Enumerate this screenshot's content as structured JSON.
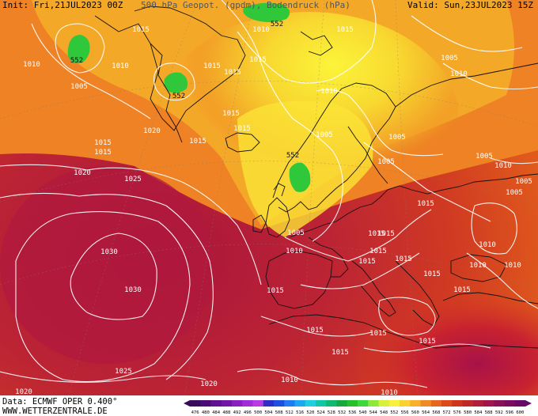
{
  "header": {
    "init": "Init: Fri,21JUL2023 00Z",
    "title": "500 hPa Geopot. (gpdm), Bodendruck (hPa)",
    "valid": "Valid: Sun,23JUL2023 15Z"
  },
  "footer": {
    "source": "Data: ECMWF OPER 0.400°",
    "website": "WWW.WETTERZENTRALE.DE"
  },
  "colorbar": {
    "levels": [
      "476",
      "480",
      "484",
      "488",
      "492",
      "496",
      "500",
      "504",
      "508",
      "512",
      "516",
      "520",
      "524",
      "528",
      "532",
      "536",
      "540",
      "544",
      "548",
      "552",
      "556",
      "560",
      "564",
      "568",
      "572",
      "576",
      "580",
      "584",
      "588",
      "592",
      "596",
      "600"
    ],
    "colors": [
      "#3a0a5a",
      "#4b0d75",
      "#5e1190",
      "#7016a8",
      "#8a1fc2",
      "#a22cd6",
      "#b83de0",
      "#2f2fc8",
      "#1f4fe0",
      "#1f7df0",
      "#1fa8f0",
      "#1fcfe0",
      "#10c8a8",
      "#10b870",
      "#18a840",
      "#28c028",
      "#3ed83a",
      "#8ee83a",
      "#d8f03a",
      "#f8f03a",
      "#fcd030",
      "#f8b02a",
      "#f08a22",
      "#e8661c",
      "#dc4a1c",
      "#d03420",
      "#c02828",
      "#b01e3c",
      "#a0164c",
      "#8c1058",
      "#7a0c60",
      "#660a68"
    ]
  },
  "isobars": [
    {
      "value": "1010",
      "at": "north-atlantic"
    },
    {
      "value": "1010",
      "at": "greenland-sea"
    },
    {
      "value": "1005",
      "at": "greenland"
    },
    {
      "value": "1015",
      "at": "svalbard"
    },
    {
      "value": "1015",
      "at": "barents-sea"
    },
    {
      "value": "1010",
      "at": "barents-sea"
    },
    {
      "value": "1005",
      "at": "russia-north"
    },
    {
      "value": "1010",
      "at": "russia-north"
    },
    {
      "value": "1020",
      "at": "iceland"
    },
    {
      "value": "1015",
      "at": "iceland"
    },
    {
      "value": "1015",
      "at": "norwegian-sea"
    },
    {
      "value": "1015",
      "at": "norwegian-sea"
    },
    {
      "value": "1015",
      "at": "greenland-east"
    },
    {
      "value": "1015",
      "at": "greenland-east"
    },
    {
      "value": "1015",
      "at": "scandinavia"
    },
    {
      "value": "1010",
      "at": "scandinavia"
    },
    {
      "value": "1005",
      "at": "scandinavia"
    },
    {
      "value": "1005",
      "at": "finland"
    },
    {
      "value": "1005",
      "at": "russia-west"
    },
    {
      "value": "1015",
      "at": "atlantic-north"
    },
    {
      "value": "1020",
      "at": "atlantic-north"
    },
    {
      "value": "1025",
      "at": "atlantic-high"
    },
    {
      "value": "1030",
      "at": "atlantic-high"
    },
    {
      "value": "1030",
      "at": "atlantic-high"
    },
    {
      "value": "1025",
      "at": "atlantic-south"
    },
    {
      "value": "1020",
      "at": "atlantic-south"
    },
    {
      "value": "1020",
      "at": "atlantic-south"
    },
    {
      "value": "1015",
      "at": "baltic"
    },
    {
      "value": "1005",
      "at": "north-sea"
    },
    {
      "value": "1010",
      "at": "north-sea"
    },
    {
      "value": "1015",
      "at": "central-europe"
    },
    {
      "value": "1015",
      "at": "central-europe"
    },
    {
      "value": "1015",
      "at": "central-europe"
    },
    {
      "value": "1015",
      "at": "alps"
    },
    {
      "value": "1015",
      "at": "balkans"
    },
    {
      "value": "1015",
      "at": "balkans"
    },
    {
      "value": "1015",
      "at": "mediterranean"
    },
    {
      "value": "1015",
      "at": "mediterranean"
    },
    {
      "value": "1015",
      "at": "mediterranean"
    },
    {
      "value": "1015",
      "at": "north-africa"
    },
    {
      "value": "1015",
      "at": "north-africa"
    },
    {
      "value": "1010",
      "at": "north-africa"
    },
    {
      "value": "1010",
      "at": "sahara"
    },
    {
      "value": "1010",
      "at": "russia-south"
    },
    {
      "value": "1010",
      "at": "black-sea"
    },
    {
      "value": "1010",
      "at": "black-sea"
    },
    {
      "value": "1010",
      "at": "black-sea"
    },
    {
      "value": "1015",
      "at": "iberia"
    },
    {
      "value": "1005",
      "at": "ukraine"
    },
    {
      "value": "1005",
      "at": "russia-east"
    },
    {
      "value": "1015",
      "at": "russia-east"
    },
    {
      "value": "1005",
      "at": "caspian"
    }
  ],
  "geopotential_labels": [
    {
      "value": "552",
      "at": "greenland-low"
    },
    {
      "value": "552",
      "at": "svalbard-low"
    },
    {
      "value": "552",
      "at": "norway-low"
    },
    {
      "value": "552",
      "at": "barents-low"
    }
  ]
}
